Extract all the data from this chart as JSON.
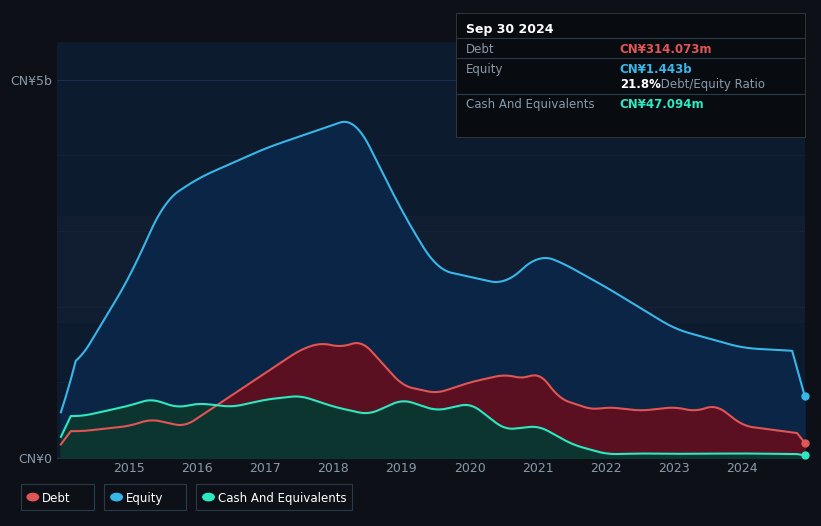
{
  "bg_color": "#0d1117",
  "plot_bg_color": "#0d1b2e",
  "plot_bg_mid": "#162035",
  "grid_color": "#1e3050",
  "axis_label_color": "#8899aa",
  "debt_color": "#e05555",
  "equity_color": "#38b6e8",
  "cash_color": "#2de8c0",
  "debt_fill": "#5a1020",
  "equity_fill": "#0a2545",
  "cash_fill": "#0d3530",
  "ylim_max": 5500000000.0,
  "ytick_labels": [
    "CN¥5b",
    "CN¥0"
  ],
  "ytick_values": [
    5000000000.0,
    0
  ],
  "xstart": 2014.0,
  "xend": 2024.92,
  "tooltip_date": "Sep 30 2024",
  "tooltip_debt_label": "Debt",
  "tooltip_debt_value": "CN¥314.073m",
  "tooltip_equity_label": "Equity",
  "tooltip_equity_value": "CN¥1.443b",
  "tooltip_ratio": "21.8%",
  "tooltip_ratio_label": " Debt/Equity Ratio",
  "tooltip_cash_label": "Cash And Equivalents",
  "tooltip_cash_value": "CN¥47.094m",
  "legend_debt": "Debt",
  "legend_equity": "Equity",
  "legend_cash": "Cash And Equivalents"
}
